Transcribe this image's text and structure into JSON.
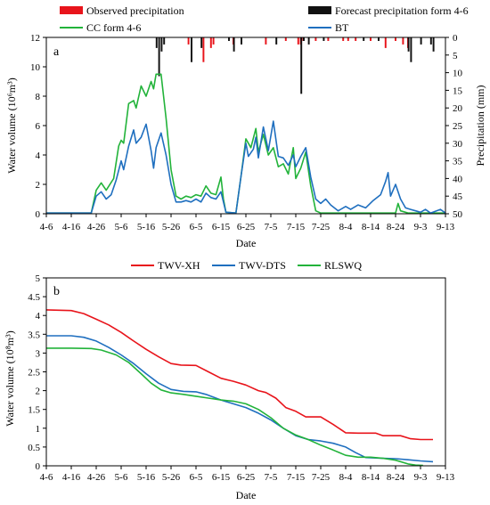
{
  "colors": {
    "observed": "#e8141b",
    "forecast": "#111111",
    "cc": "#22b33a",
    "bt": "#1f6fbf",
    "xh": "#e8141b",
    "dts": "#1f6fbf",
    "rlswq": "#22b33a"
  },
  "chart_data": [
    {
      "type": "line",
      "panel_label": "a",
      "xlabel": "Date",
      "ylabel_left": "Water volume (10⁶m³)",
      "ylabel_right": "Precipitation (mm)",
      "ylim_left": [
        0,
        12
      ],
      "ylim_right_inverted": [
        0,
        50
      ],
      "yticks_left": [
        "0",
        "2",
        "4",
        "6",
        "8",
        "10",
        "12"
      ],
      "yticks_right": [
        "0",
        "5",
        "10",
        "15",
        "20",
        "25",
        "30",
        "35",
        "40",
        "45",
        "50"
      ],
      "categories": [
        "4-6",
        "4-16",
        "4-26",
        "5-6",
        "5-16",
        "5-26",
        "6-5",
        "6-15",
        "6-25",
        "7-5",
        "7-15",
        "7-25",
        "8-4",
        "8-14",
        "8-24",
        "9-3",
        "9-13"
      ],
      "legend": [
        "Observed precipitation",
        "Forecast precipitation form 4-6",
        "CC form 4-6",
        "BT"
      ],
      "day_start_label": "4-6",
      "series": [
        {
          "name": "CC form 4-6",
          "points": [
            [
              0,
              0.05
            ],
            [
              18,
              0.05
            ],
            [
              20,
              1.6
            ],
            [
              22,
              2.1
            ],
            [
              24,
              1.6
            ],
            [
              27,
              2.4
            ],
            [
              29,
              4.6
            ],
            [
              30,
              5.0
            ],
            [
              31,
              4.8
            ],
            [
              33,
              7.5
            ],
            [
              35,
              7.7
            ],
            [
              36,
              7.2
            ],
            [
              38,
              8.7
            ],
            [
              40,
              8.0
            ],
            [
              42,
              9.0
            ],
            [
              43,
              8.5
            ],
            [
              44,
              9.5
            ],
            [
              46,
              9.5
            ],
            [
              48,
              6.5
            ],
            [
              50,
              3.0
            ],
            [
              52,
              1.2
            ],
            [
              54,
              1.0
            ],
            [
              56,
              1.2
            ],
            [
              58,
              1.1
            ],
            [
              60,
              1.3
            ],
            [
              62,
              1.2
            ],
            [
              64,
              1.9
            ],
            [
              66,
              1.4
            ],
            [
              68,
              1.3
            ],
            [
              70,
              2.5
            ],
            [
              71,
              1.0
            ],
            [
              72,
              0.1
            ],
            [
              76,
              0.05
            ],
            [
              78,
              2.5
            ],
            [
              80,
              5.1
            ],
            [
              82,
              4.5
            ],
            [
              84,
              5.8
            ],
            [
              85,
              4.2
            ],
            [
              87,
              5.4
            ],
            [
              89,
              4.0
            ],
            [
              91,
              4.5
            ],
            [
              93,
              3.2
            ],
            [
              95,
              3.4
            ],
            [
              97,
              2.7
            ],
            [
              99,
              4.5
            ],
            [
              100,
              2.4
            ],
            [
              102,
              3.1
            ],
            [
              104,
              4.2
            ],
            [
              106,
              1.9
            ],
            [
              108,
              0.2
            ],
            [
              110,
              0.05
            ],
            [
              140,
              0.05
            ],
            [
              141,
              0.7
            ],
            [
              142,
              0.2
            ],
            [
              145,
              0.05
            ],
            [
              160,
              0.05
            ]
          ]
        },
        {
          "name": "BT",
          "points": [
            [
              0,
              0.05
            ],
            [
              18,
              0.05
            ],
            [
              20,
              1.2
            ],
            [
              22,
              1.5
            ],
            [
              24,
              1.0
            ],
            [
              26,
              1.3
            ],
            [
              28,
              2.3
            ],
            [
              30,
              3.6
            ],
            [
              31,
              3.0
            ],
            [
              33,
              4.6
            ],
            [
              35,
              5.7
            ],
            [
              36,
              4.8
            ],
            [
              38,
              5.2
            ],
            [
              40,
              6.1
            ],
            [
              42,
              4.3
            ],
            [
              43,
              3.1
            ],
            [
              44,
              4.5
            ],
            [
              46,
              5.5
            ],
            [
              48,
              4.0
            ],
            [
              50,
              2.0
            ],
            [
              52,
              0.8
            ],
            [
              54,
              0.8
            ],
            [
              56,
              0.9
            ],
            [
              58,
              0.8
            ],
            [
              60,
              1.0
            ],
            [
              62,
              0.8
            ],
            [
              64,
              1.4
            ],
            [
              66,
              1.1
            ],
            [
              68,
              1.0
            ],
            [
              70,
              1.5
            ],
            [
              71,
              0.8
            ],
            [
              72,
              0.1
            ],
            [
              76,
              0.05
            ],
            [
              78,
              2.5
            ],
            [
              80,
              4.8
            ],
            [
              81,
              3.9
            ],
            [
              83,
              4.4
            ],
            [
              84,
              5.2
            ],
            [
              85,
              3.8
            ],
            [
              87,
              5.9
            ],
            [
              89,
              4.3
            ],
            [
              91,
              6.3
            ],
            [
              93,
              3.9
            ],
            [
              95,
              3.8
            ],
            [
              97,
              3.3
            ],
            [
              99,
              4.0
            ],
            [
              100,
              3.2
            ],
            [
              102,
              3.9
            ],
            [
              104,
              4.5
            ],
            [
              106,
              2.5
            ],
            [
              108,
              1.0
            ],
            [
              110,
              0.7
            ],
            [
              112,
              1.0
            ],
            [
              114,
              0.6
            ],
            [
              117,
              0.2
            ],
            [
              120,
              0.5
            ],
            [
              122,
              0.3
            ],
            [
              125,
              0.6
            ],
            [
              128,
              0.4
            ],
            [
              131,
              0.9
            ],
            [
              134,
              1.3
            ],
            [
              136,
              2.2
            ],
            [
              137,
              2.8
            ],
            [
              138,
              1.2
            ],
            [
              140,
              2.0
            ],
            [
              142,
              1.0
            ],
            [
              144,
              0.4
            ],
            [
              146,
              0.3
            ],
            [
              148,
              0.2
            ],
            [
              150,
              0.1
            ],
            [
              152,
              0.3
            ],
            [
              154,
              0.05
            ],
            [
              158,
              0.3
            ],
            [
              160,
              0.05
            ]
          ]
        }
      ],
      "observed_precipitation_bars": [
        [
          57,
          2
        ],
        [
          63,
          7
        ],
        [
          66,
          3
        ],
        [
          67,
          2
        ],
        [
          75,
          2
        ],
        [
          88,
          2
        ],
        [
          96,
          1
        ],
        [
          101,
          2
        ],
        [
          102,
          2
        ],
        [
          103,
          1
        ],
        [
          108,
          1
        ],
        [
          113,
          1
        ],
        [
          119,
          1
        ],
        [
          121,
          1
        ],
        [
          124,
          1
        ],
        [
          130,
          1
        ],
        [
          136,
          3
        ],
        [
          140,
          1
        ],
        [
          143,
          2
        ],
        [
          145,
          3
        ]
      ],
      "forecast_precipitation_bars": [
        [
          44,
          3
        ],
        [
          45,
          11
        ],
        [
          46,
          4
        ],
        [
          47,
          2
        ],
        [
          58,
          7
        ],
        [
          62,
          3
        ],
        [
          73,
          1
        ],
        [
          75,
          4
        ],
        [
          78,
          2
        ],
        [
          92,
          2
        ],
        [
          102,
          16
        ],
        [
          103,
          1
        ],
        [
          105,
          2
        ],
        [
          111,
          1
        ],
        [
          127,
          1
        ],
        [
          133,
          1
        ],
        [
          145,
          4
        ],
        [
          146,
          7
        ],
        [
          150,
          2
        ],
        [
          154,
          2
        ],
        [
          155,
          4
        ]
      ]
    },
    {
      "type": "line",
      "panel_label": "b",
      "xlabel": "Date",
      "ylabel": "Water volume (10⁸m³)",
      "ylim": [
        0,
        5
      ],
      "yticks": [
        "0",
        "0.5",
        "1",
        "1.5",
        "2",
        "2.5",
        "3",
        "3.5",
        "4",
        "4.5",
        "5"
      ],
      "categories": [
        "4-6",
        "4-16",
        "4-26",
        "5-6",
        "5-16",
        "5-26",
        "6-5",
        "6-15",
        "6-25",
        "7-5",
        "7-15",
        "7-25",
        "8-4",
        "8-14",
        "8-24",
        "9-3",
        "9-13"
      ],
      "legend": [
        "TWV-XH",
        "TWV-DTS",
        "RLSWQ"
      ],
      "series": [
        {
          "name": "TWV-XH",
          "points": [
            [
              0,
              4.15
            ],
            [
              5,
              4.14
            ],
            [
              10,
              4.13
            ],
            [
              15,
              4.05
            ],
            [
              20,
              3.9
            ],
            [
              25,
              3.75
            ],
            [
              30,
              3.55
            ],
            [
              35,
              3.32
            ],
            [
              40,
              3.1
            ],
            [
              45,
              2.9
            ],
            [
              50,
              2.72
            ],
            [
              54,
              2.68
            ],
            [
              60,
              2.67
            ],
            [
              65,
              2.5
            ],
            [
              70,
              2.33
            ],
            [
              75,
              2.25
            ],
            [
              80,
              2.15
            ],
            [
              85,
              2.0
            ],
            [
              88,
              1.95
            ],
            [
              92,
              1.8
            ],
            [
              96,
              1.55
            ],
            [
              100,
              1.45
            ],
            [
              104,
              1.3
            ],
            [
              110,
              1.3
            ],
            [
              115,
              1.1
            ],
            [
              120,
              0.88
            ],
            [
              125,
              0.87
            ],
            [
              132,
              0.87
            ],
            [
              135,
              0.8
            ],
            [
              142,
              0.8
            ],
            [
              146,
              0.72
            ],
            [
              150,
              0.7
            ],
            [
              155,
              0.7
            ]
          ]
        },
        {
          "name": "TWV-DTS",
          "points": [
            [
              0,
              3.46
            ],
            [
              10,
              3.46
            ],
            [
              15,
              3.42
            ],
            [
              20,
              3.32
            ],
            [
              25,
              3.15
            ],
            [
              30,
              2.95
            ],
            [
              35,
              2.72
            ],
            [
              40,
              2.45
            ],
            [
              45,
              2.2
            ],
            [
              50,
              2.03
            ],
            [
              55,
              1.98
            ],
            [
              60,
              1.97
            ],
            [
              64,
              1.9
            ],
            [
              70,
              1.75
            ],
            [
              75,
              1.65
            ],
            [
              80,
              1.55
            ],
            [
              85,
              1.4
            ],
            [
              90,
              1.22
            ],
            [
              95,
              1.0
            ],
            [
              100,
              0.8
            ],
            [
              105,
              0.7
            ],
            [
              110,
              0.66
            ],
            [
              115,
              0.6
            ],
            [
              120,
              0.5
            ],
            [
              124,
              0.35
            ],
            [
              128,
              0.22
            ],
            [
              135,
              0.2
            ],
            [
              140,
              0.19
            ],
            [
              145,
              0.16
            ],
            [
              150,
              0.13
            ],
            [
              155,
              0.11
            ]
          ]
        },
        {
          "name": "RLSWQ",
          "points": [
            [
              0,
              3.13
            ],
            [
              10,
              3.13
            ],
            [
              18,
              3.12
            ],
            [
              22,
              3.08
            ],
            [
              28,
              2.95
            ],
            [
              33,
              2.75
            ],
            [
              38,
              2.45
            ],
            [
              42,
              2.2
            ],
            [
              46,
              2.02
            ],
            [
              50,
              1.94
            ],
            [
              55,
              1.9
            ],
            [
              60,
              1.85
            ],
            [
              65,
              1.8
            ],
            [
              70,
              1.75
            ],
            [
              75,
              1.72
            ],
            [
              80,
              1.65
            ],
            [
              85,
              1.5
            ],
            [
              90,
              1.28
            ],
            [
              95,
              1.0
            ],
            [
              100,
              0.82
            ],
            [
              105,
              0.7
            ],
            [
              110,
              0.55
            ],
            [
              115,
              0.42
            ],
            [
              120,
              0.28
            ],
            [
              125,
              0.23
            ],
            [
              130,
              0.23
            ],
            [
              135,
              0.2
            ],
            [
              140,
              0.15
            ],
            [
              145,
              0.05
            ],
            [
              148,
              0.02
            ],
            [
              151,
              0.01
            ]
          ]
        }
      ]
    }
  ]
}
